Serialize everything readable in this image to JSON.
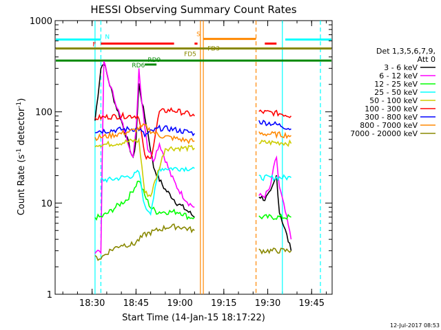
{
  "chart_data": {
    "type": "line",
    "title": "HESSI Observing Summary Count Rates",
    "xlabel": "Start Time (14-Jan-15 18:17:22)",
    "ylabel_main": "Count Rate (s",
    "ylabel_sup1": "-1",
    "ylabel_mid": " detector",
    "ylabel_sup2": "-1",
    "ylabel_end": ")",
    "date_stamp": "12-Jul-2017 08:53",
    "yscale": "log",
    "ylim": [
      1,
      1000
    ],
    "xlim": [
      "18:17:22",
      "19:52:00"
    ],
    "xticks": [
      "18:30",
      "18:45",
      "19:00",
      "19:15",
      "19:30",
      "19:45"
    ],
    "yticks": [
      "1",
      "10",
      "100",
      "1000"
    ],
    "legend": {
      "placement": "right",
      "header": [
        "Det 1,3,5,6,7,9,",
        "Att 0"
      ],
      "entries": [
        {
          "label": "3 - 6 keV",
          "color": "#000000"
        },
        {
          "label": "6 - 12 keV",
          "color": "#ff00ff"
        },
        {
          "label": "12 - 25 keV",
          "color": "#00ff00"
        },
        {
          "label": "25 - 50 keV",
          "color": "#00ffff"
        },
        {
          "label": "50 - 100 keV",
          "color": "#cccc00"
        },
        {
          "label": "100 - 300 keV",
          "color": "#ff0000"
        },
        {
          "label": "300 - 800 keV",
          "color": "#0000ff"
        },
        {
          "label": "800 - 7000 keV",
          "color": "#ff8800"
        },
        {
          "label": "7000 - 20000 keV",
          "color": "#888800"
        }
      ]
    },
    "flags": [
      {
        "label": "N",
        "color": "#00ffff",
        "y": 620,
        "segments": [
          [
            "18:17:22",
            "18:33:00"
          ],
          [
            "19:36:00",
            "19:52:00"
          ]
        ]
      },
      {
        "label": "S",
        "color": "#ff8800",
        "y": 630,
        "segments": [
          [
            "19:08:00",
            "19:26:00"
          ]
        ]
      },
      {
        "label": "F",
        "color": "#ff0000",
        "y": 560,
        "segments": [
          [
            "18:33:00",
            "18:58:00"
          ],
          [
            "19:05:00",
            "19:06:00"
          ],
          [
            "19:29:00",
            "19:33:00"
          ]
        ]
      },
      {
        "label": "FD3",
        "color": "#888800",
        "y": 495,
        "segments": [
          [
            "18:17:22",
            "19:52:00"
          ]
        ]
      },
      {
        "label": "FD5",
        "color": "#888800",
        "y": 430,
        "segments": []
      },
      {
        "label": "RD9",
        "color": "#008800",
        "y": 330,
        "segments": [
          [
            "18:48:00",
            "18:52:00"
          ]
        ]
      },
      {
        "label": "RD6",
        "color": "#008800",
        "y": 365,
        "segments": [
          [
            "18:17:22",
            "19:52:00"
          ]
        ]
      }
    ],
    "vlines": [
      {
        "t": "18:31:00",
        "color": "#00ffff",
        "style": "solid"
      },
      {
        "t": "18:33:00",
        "color": "#00ffff",
        "style": "dashed"
      },
      {
        "t": "19:07:00",
        "color": "#ff8800",
        "style": "solid"
      },
      {
        "t": "19:08:00",
        "color": "#ff8800",
        "style": "solid"
      },
      {
        "t": "19:26:00",
        "color": "#ff8800",
        "style": "dashed"
      },
      {
        "t": "19:35:00",
        "color": "#00ffff",
        "style": "solid"
      },
      {
        "t": "19:48:00",
        "color": "#00ffff",
        "style": "dashed"
      }
    ],
    "series": [
      {
        "name": "3 - 6 keV",
        "color": "#000000",
        "segments": [
          {
            "x": [
              "18:31:00",
              "18:33:00",
              "18:34:00",
              "18:36:00",
              "18:38:00",
              "18:40:00",
              "18:42:00",
              "18:44:00",
              "18:45:00",
              "18:46:00",
              "18:47:00",
              "18:49:00",
              "18:51:00",
              "18:53:00",
              "18:55:00",
              "18:57:00",
              "18:59:00",
              "19:01:00",
              "19:03:00",
              "19:05:00"
            ],
            "y": [
              80,
              300,
              350,
              200,
              120,
              80,
              50,
              30,
              50,
              200,
              130,
              60,
              25,
              18,
              14,
              12,
              10,
              9,
              8,
              7
            ]
          },
          {
            "x": [
              "19:27:00",
              "19:29:00",
              "19:31:00",
              "19:32:00",
              "19:33:00",
              "19:34:00",
              "19:36:00",
              "19:38:00"
            ],
            "y": [
              12,
              11,
              13,
              16,
              20,
              8,
              5,
              3
            ]
          }
        ]
      },
      {
        "name": "6 - 12 keV",
        "color": "#ff00ff",
        "segments": [
          {
            "x": [
              "18:31:00",
              "18:33:00",
              "18:34:00",
              "18:36:00",
              "18:38:00",
              "18:40:00",
              "18:42:00",
              "18:44:00",
              "18:45:00",
              "18:46:00",
              "18:47:00",
              "18:49:00",
              "18:51:00",
              "18:53:00",
              "18:55:00",
              "18:57:00",
              "18:59:00",
              "19:01:00",
              "19:03:00",
              "19:05:00"
            ],
            "y": [
              3,
              3,
              360,
              200,
              130,
              80,
              50,
              32,
              60,
              300,
              130,
              40,
              30,
              45,
              30,
              20,
              15,
              12,
              10,
              9
            ]
          },
          {
            "x": [
              "19:27:00",
              "19:29:00",
              "19:31:00",
              "19:32:00",
              "19:33:00",
              "19:34:00",
              "19:36:00",
              "19:38:00"
            ],
            "y": [
              12,
              12,
              15,
              25,
              30,
              15,
              8,
              4
            ]
          }
        ]
      },
      {
        "name": "12 - 25 keV",
        "color": "#00ff00",
        "segments": [
          {
            "x": [
              "18:31:00",
              "18:33:00",
              "18:36:00",
              "18:38:00",
              "18:40:00",
              "18:42:00",
              "18:44:00",
              "18:46:00",
              "18:48:00",
              "18:50:00",
              "18:52:00",
              "18:54:00",
              "18:57:00",
              "19:00:00",
              "19:03:00",
              "19:05:00"
            ],
            "y": [
              7,
              7,
              8,
              9,
              10,
              11,
              14,
              18,
              12,
              9,
              8,
              8,
              8,
              8,
              7,
              7
            ]
          },
          {
            "x": [
              "19:27:00",
              "19:31:00",
              "19:35:00",
              "19:38:00"
            ],
            "y": [
              7,
              7,
              7,
              7
            ]
          }
        ]
      },
      {
        "name": "25 - 50 keV",
        "color": "#00ffff",
        "segments": [
          {
            "x": [
              "18:33:00",
              "18:36:00",
              "18:40:00",
              "18:44:00",
              "18:46:00",
              "18:48:00",
              "18:50:00",
              "18:53:00",
              "18:57:00",
              "19:00:00",
              "19:03:00",
              "19:05:00"
            ],
            "y": [
              18,
              18,
              19,
              20,
              22,
              9,
              8,
              24,
              24,
              24,
              24,
              24
            ]
          },
          {
            "x": [
              "19:27:00",
              "19:31:00",
              "19:35:00",
              "19:38:00"
            ],
            "y": [
              19,
              19,
              19,
              19
            ]
          }
        ]
      },
      {
        "name": "50 - 100 keV",
        "color": "#cccc00",
        "segments": [
          {
            "x": [
              "18:31:00",
              "18:35:00",
              "18:40:00",
              "18:44:00",
              "18:46:00",
              "18:48:00",
              "18:50:00",
              "18:55:00",
              "19:00:00",
              "19:05:00"
            ],
            "y": [
              44,
              44,
              46,
              48,
              48,
              13,
              12,
              40,
              40,
              40
            ]
          },
          {
            "x": [
              "19:27:00",
              "19:31:00",
              "19:35:00",
              "19:38:00"
            ],
            "y": [
              46,
              46,
              46,
              45
            ]
          }
        ]
      },
      {
        "name": "100 - 300 keV",
        "color": "#ff0000",
        "segments": [
          {
            "x": [
              "18:31:00",
              "18:35:00",
              "18:40:00",
              "18:44:00",
              "18:46:00",
              "18:48:00",
              "18:50:00",
              "18:53:00",
              "18:57:00",
              "19:00:00",
              "19:03:00",
              "19:05:00"
            ],
            "y": [
              85,
              88,
              90,
              90,
              90,
              32,
              30,
              100,
              105,
              100,
              95,
              90
            ]
          },
          {
            "x": [
              "19:27:00",
              "19:31:00",
              "19:35:00",
              "19:38:00"
            ],
            "y": [
              100,
              98,
              95,
              90
            ]
          }
        ]
      },
      {
        "name": "300 - 800 keV",
        "color": "#0000ff",
        "segments": [
          {
            "x": [
              "18:31:00",
              "18:35:00",
              "18:40:00",
              "18:44:00",
              "18:46:00",
              "18:48:00",
              "18:50:00",
              "18:53:00",
              "18:57:00",
              "19:00:00",
              "19:03:00",
              "19:05:00"
            ],
            "y": [
              62,
              62,
              64,
              65,
              65,
              55,
              60,
              66,
              65,
              62,
              60,
              58
            ]
          },
          {
            "x": [
              "19:27:00",
              "19:31:00",
              "19:35:00",
              "19:38:00"
            ],
            "y": [
              78,
              75,
              70,
              65
            ]
          }
        ]
      },
      {
        "name": "800 - 7000 keV",
        "color": "#ff8800",
        "segments": [
          {
            "x": [
              "18:31:00",
              "18:35:00",
              "18:40:00",
              "18:44:00",
              "18:46:00",
              "18:48:00",
              "18:50:00",
              "18:53:00",
              "18:57:00",
              "19:00:00",
              "19:03:00",
              "19:05:00"
            ],
            "y": [
              52,
              54,
              58,
              62,
              66,
              70,
              62,
              55,
              52,
              50,
              48,
              48
            ]
          },
          {
            "x": [
              "19:27:00",
              "19:31:00",
              "19:35:00",
              "19:38:00"
            ],
            "y": [
              58,
              57,
              56,
              55
            ]
          }
        ]
      },
      {
        "name": "7000 - 20000 keV",
        "color": "#888800",
        "segments": [
          {
            "x": [
              "18:31:00",
              "18:33:00",
              "18:36:00",
              "18:40:00",
              "18:44:00",
              "18:48:00",
              "18:52:00",
              "18:56:00",
              "19:00:00",
              "19:05:00"
            ],
            "y": [
              2.5,
              2.5,
              3,
              3.5,
              3.5,
              4.5,
              5,
              5.5,
              5.5,
              5
            ]
          },
          {
            "x": [
              "19:27:00",
              "19:31:00",
              "19:35:00",
              "19:38:00"
            ],
            "y": [
              3,
              3,
              3,
              3
            ]
          }
        ]
      }
    ]
  }
}
